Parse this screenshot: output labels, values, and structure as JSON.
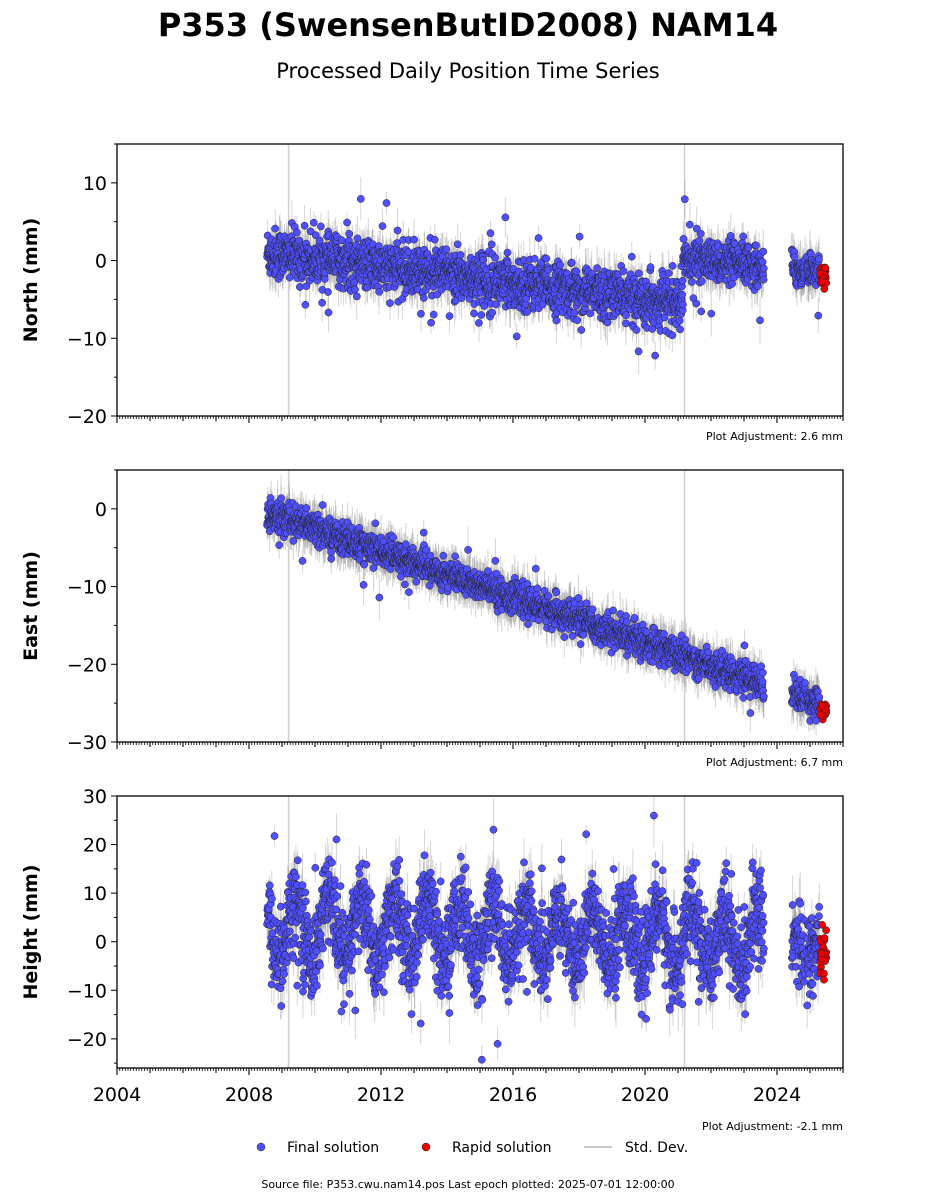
{
  "title": "P353 (SwensenButID2008) NAM14",
  "subtitle": "Processed Daily Position Time Series",
  "source_text": "Source file: P353.cwu.nam14.pos  Last epoch plotted: 2025-07-01 12:00:00",
  "legend": {
    "final": "Final solution",
    "rapid": "Rapid solution",
    "std": "Std. Dev."
  },
  "colors": {
    "final": "#4f4fff",
    "rapid": "#ee0000",
    "std": "#c8c8c8",
    "vline": "#d0d0d0"
  },
  "chart_data": [
    {
      "type": "scatter",
      "ylabel": "North (mm)",
      "adjustment": "Plot Adjustment: 2.6 mm",
      "xlim": [
        2004,
        2026
      ],
      "ylim": [
        -20,
        15
      ],
      "yticks": [
        -20,
        -10,
        0,
        10
      ],
      "vlines": [
        2009.2,
        2021.2
      ],
      "segments": [
        {
          "start": 2008.55,
          "end": 2021.15,
          "y0": 1.0,
          "y1": -5.5,
          "noise": 1.6
        },
        {
          "start": 2021.15,
          "end": 2023.6,
          "y0": 0.3,
          "y1": -0.8,
          "noise": 1.3
        },
        {
          "start": 2024.45,
          "end": 2024.85,
          "y0": -1.0,
          "y1": -1.5,
          "noise": 1.1
        },
        {
          "start": 2024.9,
          "end": 2025.28,
          "y0": -1.0,
          "y1": -1.2,
          "noise": 1.0
        }
      ],
      "rapid": {
        "start": 2025.3,
        "end": 2025.5,
        "y": -1.8,
        "noise": 0.8
      }
    },
    {
      "type": "scatter",
      "ylabel": "East (mm)",
      "adjustment": "Plot Adjustment: 6.7 mm",
      "xlim": [
        2004,
        2026
      ],
      "ylim": [
        -30,
        5
      ],
      "yticks": [
        -30,
        -20,
        -10,
        0
      ],
      "vlines": [
        2009.2,
        2021.2
      ],
      "segments": [
        {
          "start": 2008.55,
          "end": 2023.6,
          "y0": -0.5,
          "y1": -22.5,
          "noise": 1.0
        },
        {
          "start": 2024.45,
          "end": 2024.85,
          "y0": -23.5,
          "y1": -24.2,
          "noise": 1.0
        },
        {
          "start": 2024.9,
          "end": 2025.28,
          "y0": -24.5,
          "y1": -25.0,
          "noise": 0.9
        }
      ],
      "rapid": {
        "start": 2025.3,
        "end": 2025.5,
        "y": -25.6,
        "noise": 0.7
      }
    },
    {
      "type": "scatter",
      "ylabel": "Height (mm)",
      "adjustment": "Plot Adjustment: -2.1 mm",
      "xlim": [
        2004,
        2026
      ],
      "ylim": [
        -26,
        30
      ],
      "yticks": [
        -20,
        -10,
        0,
        10,
        20,
        30
      ],
      "xticks": [
        2004,
        2008,
        2012,
        2016,
        2020,
        2024
      ],
      "vlines": [
        2009.2,
        2021.2
      ],
      "segments": [
        {
          "start": 2008.55,
          "end": 2023.6,
          "y0": 3.0,
          "y1": 0.0,
          "noise": 4.5,
          "seasonal": 6.0
        },
        {
          "start": 2024.45,
          "end": 2024.85,
          "y0": -1.0,
          "y1": 0.0,
          "noise": 4.0,
          "seasonal": 3.0
        },
        {
          "start": 2024.9,
          "end": 2025.28,
          "y0": -1.0,
          "y1": -2.0,
          "noise": 4.0,
          "seasonal": 3.0
        }
      ],
      "rapid": {
        "start": 2025.3,
        "end": 2025.5,
        "y": -2.5,
        "noise": 3.0
      }
    }
  ]
}
